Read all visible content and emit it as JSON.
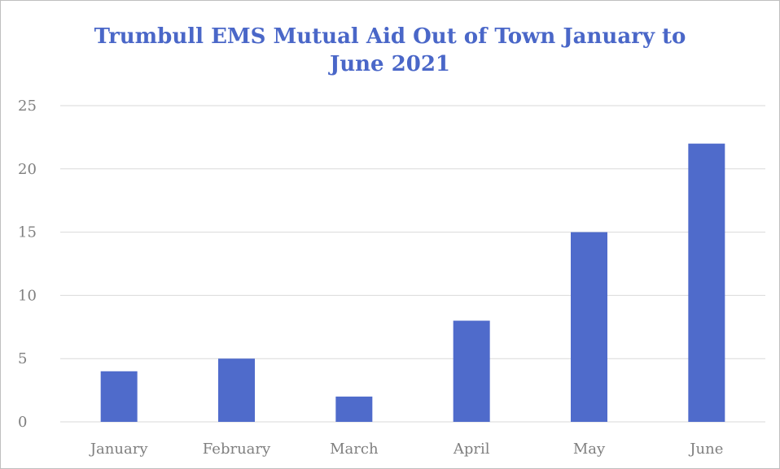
{
  "chart_data": {
    "type": "bar",
    "title_line1": "Trumbull EMS Mutual Aid Out of Town January to",
    "title_line2": "June 2021",
    "categories": [
      "January",
      "February",
      "March",
      "April",
      "May",
      "June"
    ],
    "values": [
      4,
      5,
      2,
      8,
      15,
      22
    ],
    "yticks": [
      0,
      5,
      10,
      15,
      20,
      25
    ],
    "ylim": [
      0,
      25
    ],
    "grid": true,
    "legend": "none",
    "bar_color": "#4f6bcb",
    "grid_color": "#d9d9d9"
  }
}
